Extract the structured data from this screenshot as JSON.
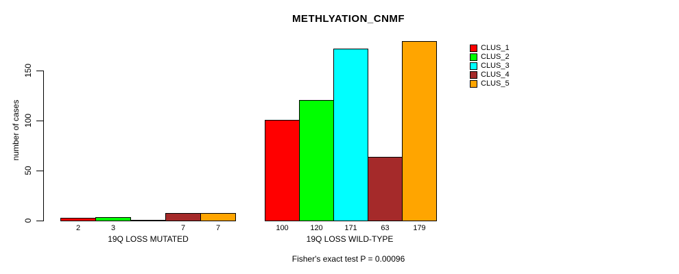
{
  "chart_data": {
    "type": "bar",
    "title": "METHLYATION_CNMF",
    "xlabel": "",
    "ylabel": "number of cases",
    "categories": [
      "19Q LOSS MUTATED",
      "19Q LOSS WILD-TYPE"
    ],
    "series": [
      {
        "name": "CLUS_1",
        "color": "#ff0000",
        "values": [
          2,
          100
        ]
      },
      {
        "name": "CLUS_2",
        "color": "#00ff00",
        "values": [
          3,
          120
        ]
      },
      {
        "name": "CLUS_3",
        "color": "#00ffff",
        "values": [
          0,
          171
        ]
      },
      {
        "name": "CLUS_4",
        "color": "#a52a2a",
        "values": [
          7,
          63
        ]
      },
      {
        "name": "CLUS_5",
        "color": "#ffa500",
        "values": [
          7,
          179
        ]
      }
    ],
    "bar_value_labels": [
      [
        "2",
        "3",
        "",
        "7",
        "7"
      ],
      [
        "100",
        "120",
        "171",
        "63",
        "179"
      ]
    ],
    "yticks": [
      0,
      50,
      100,
      150
    ],
    "ylim": [
      0,
      180
    ],
    "grid": false,
    "legend_position": "top-right",
    "legend_entries": [
      "CLUS_1",
      "CLUS_2",
      "CLUS_3",
      "CLUS_4",
      "CLUS_5"
    ],
    "annotation": "Fisher's exact test P = 0.00096",
    "colors": {
      "axis": "#000000",
      "text": "#000000",
      "background": "#ffffff"
    }
  }
}
